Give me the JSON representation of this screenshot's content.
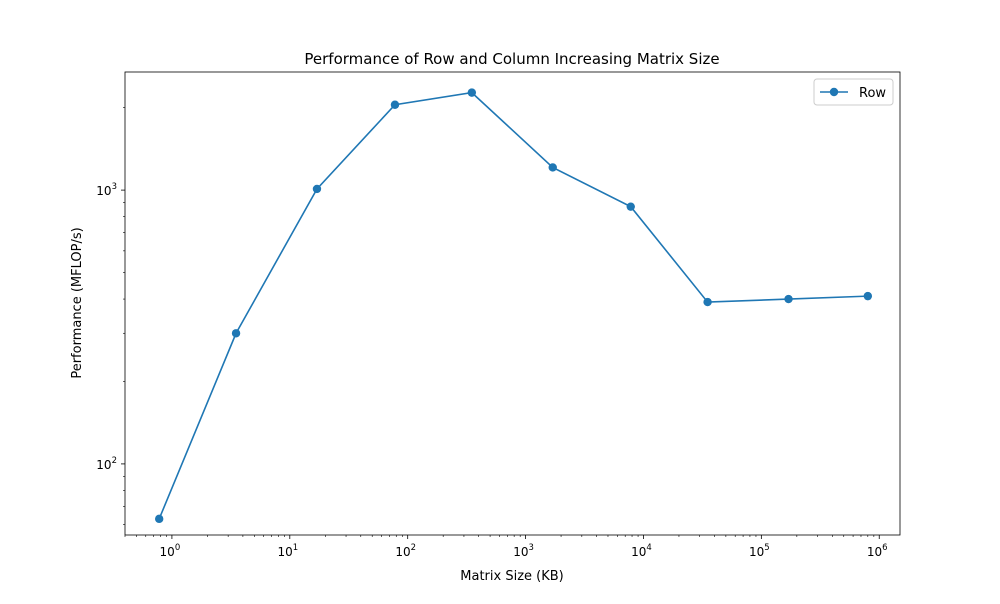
{
  "chart_data": {
    "type": "line",
    "title": "Performance of Row and Column Increasing Matrix Size",
    "xlabel": "Matrix Size (KB)",
    "ylabel": "Performance (MFLOP/s)",
    "x_scale": "log",
    "y_scale": "log",
    "xlim": [
      0.4,
      1500000
    ],
    "ylim": [
      55,
      2700
    ],
    "x_ticks": [
      {
        "value": 1,
        "base": "10",
        "exp": "0"
      },
      {
        "value": 10,
        "base": "10",
        "exp": "1"
      },
      {
        "value": 100,
        "base": "10",
        "exp": "2"
      },
      {
        "value": 1000,
        "base": "10",
        "exp": "3"
      },
      {
        "value": 10000,
        "base": "10",
        "exp": "4"
      },
      {
        "value": 100000,
        "base": "10",
        "exp": "5"
      },
      {
        "value": 1000000,
        "base": "10",
        "exp": "6"
      }
    ],
    "y_ticks": [
      {
        "value": 100,
        "base": "10",
        "exp": "2"
      },
      {
        "value": 1000,
        "base": "10",
        "exp": "3"
      }
    ],
    "grid": false,
    "legend": "top-right",
    "series": [
      {
        "name": "Row",
        "color": "#1f77b4",
        "marker": "circle",
        "x": [
          0.78,
          3.5,
          17,
          78,
          350,
          1700,
          7800,
          35000,
          170000,
          800000
        ],
        "y": [
          63,
          300,
          1010,
          2050,
          2270,
          1210,
          870,
          390,
          400,
          410
        ]
      }
    ]
  }
}
